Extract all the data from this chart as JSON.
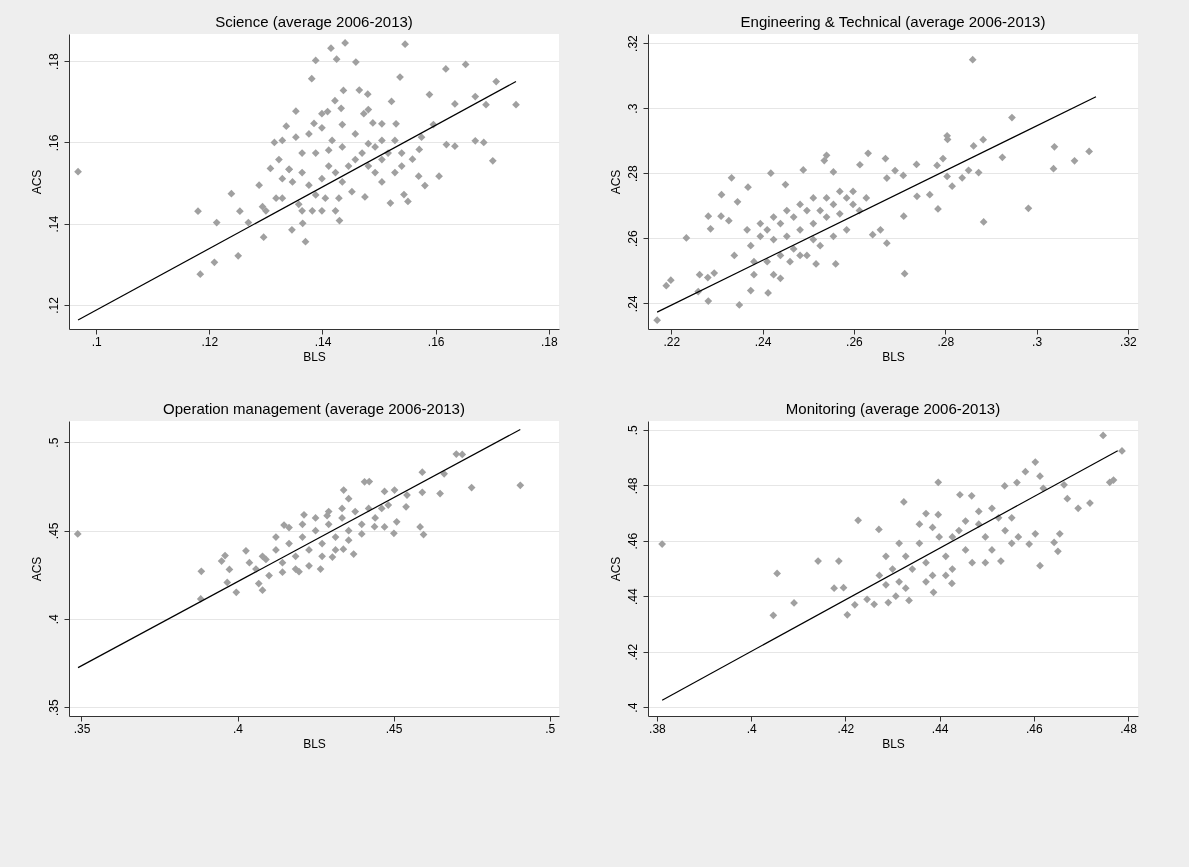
{
  "chart_data": [
    {
      "type": "scatter",
      "title": "Science (average 2006-2013)",
      "xlabel": "BLS",
      "ylabel": "ACS",
      "marker": "diamond",
      "grid": "y",
      "xlim": [
        0.0952,
        0.1818
      ],
      "ylim": [
        0.1141,
        0.1867
      ],
      "xticks": [
        {
          "value": 0.1,
          "label": ".1"
        },
        {
          "value": 0.12,
          "label": ".12"
        },
        {
          "value": 0.14,
          "label": ".14"
        },
        {
          "value": 0.16,
          "label": ".16"
        },
        {
          "value": 0.18,
          "label": ".18"
        }
      ],
      "yticks": [
        {
          "value": 0.12,
          "label": ".12"
        },
        {
          "value": 0.14,
          "label": ".14"
        },
        {
          "value": 0.16,
          "label": ".16"
        },
        {
          "value": 0.18,
          "label": ".18"
        }
      ],
      "series": [
        {
          "color": "#a0a0a0",
          "x": [
            0.0968,
            0.118,
            0.1184,
            0.1209,
            0.1213,
            0.1239,
            0.1251,
            0.1254,
            0.1269,
            0.1288,
            0.1296,
            0.1294,
            0.1308,
            0.1315,
            0.1336,
            0.1353,
            0.137,
            0.1381,
            0.1388,
            0.1415,
            0.144,
            0.1425,
            0.1459,
            0.1546,
            0.1537,
            0.1437,
            0.1465,
            0.148,
            0.1422,
            0.1433,
            0.1522,
            0.1618,
            0.1653,
            0.1707,
            0.1742,
            0.167,
            0.1689,
            0.1634,
            0.1589,
            0.1596,
            0.1575,
            0.167,
            0.1685,
            0.1701,
            0.1619,
            0.1634,
            0.1606,
            0.1581,
            0.1551,
            0.152,
            0.1544,
            0.1571,
            0.1559,
            0.157,
            0.153,
            0.1505,
            0.1489,
            0.1481,
            0.1473,
            0.1399,
            0.1409,
            0.1385,
            0.143,
            0.1346,
            0.1365,
            0.1475,
            0.1329,
            0.1347,
            0.1364,
            0.1376,
            0.1388,
            0.1399,
            0.1411,
            0.1423,
            0.1435,
            0.1446,
            0.1458,
            0.147,
            0.1481,
            0.1493,
            0.1505,
            0.1516,
            0.1364,
            0.1388,
            0.1411,
            0.1435,
            0.1341,
            0.1358,
            0.1382,
            0.1405,
            0.1429,
            0.1452,
            0.1329,
            0.1329,
            0.1353,
            0.1376,
            0.1399,
            0.1435,
            0.1458,
            0.1481,
            0.1505,
            0.1528,
            0.154,
            0.154,
            0.1528,
            0.1505,
            0.1341,
            0.13,
            0.1318,
            0.1493,
            0.1399,
            0.1423,
            0.1364,
            0.1323,
            0.1417
          ],
          "values": [
            0.1528,
            0.1431,
            0.1276,
            0.1305,
            0.1403,
            0.1474,
            0.1321,
            0.1431,
            0.1403,
            0.1495,
            0.1367,
            0.1442,
            0.1536,
            0.16,
            0.164,
            0.1677,
            0.1356,
            0.1757,
            0.1802,
            0.1832,
            0.1845,
            0.1805,
            0.1798,
            0.1842,
            0.1761,
            0.1728,
            0.1729,
            0.1719,
            0.1703,
            0.1684,
            0.1701,
            0.1781,
            0.1792,
            0.175,
            0.1693,
            0.1713,
            0.1693,
            0.1695,
            0.1718,
            0.1644,
            0.1613,
            0.1604,
            0.16,
            0.1555,
            0.1595,
            0.1591,
            0.1517,
            0.1494,
            0.1455,
            0.1451,
            0.1472,
            0.1583,
            0.1559,
            0.1517,
            0.1646,
            0.1646,
            0.1648,
            0.1681,
            0.1671,
            0.1671,
            0.1676,
            0.1647,
            0.1408,
            0.1385,
            0.1401,
            0.1466,
            0.1463,
            0.1503,
            0.1526,
            0.1495,
            0.1471,
            0.1511,
            0.1542,
            0.1526,
            0.1503,
            0.1542,
            0.1558,
            0.1574,
            0.1542,
            0.1526,
            0.1558,
            0.1574,
            0.1574,
            0.1574,
            0.1581,
            0.1589,
            0.1534,
            0.1448,
            0.1432,
            0.1463,
            0.1463,
            0.1479,
            0.1511,
            0.1605,
            0.1613,
            0.1621,
            0.1636,
            0.1644,
            0.1621,
            0.1597,
            0.1605,
            0.1605,
            0.1574,
            0.1542,
            0.1526,
            0.1503,
            0.1534,
            0.1432,
            0.1463,
            0.1589,
            0.1432,
            0.1432,
            0.1432,
            0.1558,
            0.1605
          ]
        },
        {
          "type": "line",
          "marker": "none",
          "color": "#000000",
          "x": [
            0.0968,
            0.1742
          ],
          "values": [
            0.1163,
            0.175
          ]
        }
      ]
    },
    {
      "type": "scatter",
      "title": "Engineering & Technical (average 2006-2013)",
      "xlabel": "BLS",
      "ylabel": "ACS",
      "marker": "diamond",
      "grid": "y",
      "xlim": [
        0.2149,
        0.3222
      ],
      "ylim": [
        0.2321,
        0.3228
      ],
      "xticks": [
        {
          "value": 0.22,
          "label": ".22"
        },
        {
          "value": 0.24,
          "label": ".24"
        },
        {
          "value": 0.26,
          "label": ".26"
        },
        {
          "value": 0.28,
          "label": ".28"
        },
        {
          "value": 0.3,
          "label": ".3"
        },
        {
          "value": 0.32,
          "label": ".32"
        }
      ],
      "yticks": [
        {
          "value": 0.24,
          "label": ".24"
        },
        {
          "value": 0.26,
          "label": ".26"
        },
        {
          "value": 0.28,
          "label": ".28"
        },
        {
          "value": 0.3,
          "label": ".3"
        },
        {
          "value": 0.32,
          "label": ".32"
        }
      ],
      "series": [
        {
          "color": "#a0a0a0",
          "x": [
            0.2169,
            0.2189,
            0.2199,
            0.2233,
            0.2262,
            0.228,
            0.2281,
            0.2259,
            0.2286,
            0.2281,
            0.231,
            0.2309,
            0.2332,
            0.2326,
            0.2345,
            0.2368,
            0.2349,
            0.2412,
            0.2418,
            0.245,
            0.2489,
            0.254,
            0.2535,
            0.2555,
            0.2631,
            0.2613,
            0.2669,
            0.269,
            0.2708,
            0.2737,
            0.2782,
            0.2795,
            0.2804,
            0.2805,
            0.2883,
            0.2862,
            0.286,
            0.2946,
            0.2925,
            0.3039,
            0.3037,
            0.3083,
            0.3115,
            0.2982,
            0.2884,
            0.2873,
            0.2851,
            0.2837,
            0.2815,
            0.2804,
            0.2784,
            0.2766,
            0.2738,
            0.2709,
            0.2711,
            0.2672,
            0.2658,
            0.2672,
            0.2641,
            0.256,
            0.2517,
            0.2439,
            0.2374,
            0.2294,
            0.2338,
            0.2374,
            0.2395,
            0.241,
            0.2424,
            0.2439,
            0.2453,
            0.2468,
            0.2482,
            0.2497,
            0.2511,
            0.2526,
            0.254,
            0.2555,
            0.2569,
            0.2584,
            0.2598,
            0.2612,
            0.2627,
            0.2381,
            0.241,
            0.2439,
            0.2468,
            0.2482,
            0.2395,
            0.2424,
            0.2453,
            0.2482,
            0.2511,
            0.254,
            0.2569,
            0.2598,
            0.2526,
            0.2555,
            0.2584,
            0.2381,
            0.2424,
            0.246,
            0.2366,
            0.2511,
            0.2497
          ],
          "values": [
            0.2348,
            0.2454,
            0.2471,
            0.2601,
            0.2488,
            0.2479,
            0.2407,
            0.2436,
            0.2629,
            0.2668,
            0.2734,
            0.2668,
            0.2786,
            0.2654,
            0.2712,
            0.2757,
            0.2395,
            0.2432,
            0.28,
            0.2765,
            0.281,
            0.2855,
            0.2839,
            0.2804,
            0.2861,
            0.2826,
            0.2845,
            0.2808,
            0.2793,
            0.2827,
            0.2824,
            0.2845,
            0.2915,
            0.2904,
            0.2903,
            0.2884,
            0.3149,
            0.2971,
            0.2849,
            0.2881,
            0.2814,
            0.2838,
            0.2867,
            0.2692,
            0.265,
            0.2802,
            0.2809,
            0.2786,
            0.276,
            0.279,
            0.269,
            0.2734,
            0.2729,
            0.2668,
            0.2491,
            0.2585,
            0.2626,
            0.2785,
            0.2611,
            0.2521,
            0.2521,
            0.2477,
            0.2439,
            0.2493,
            0.2547,
            0.2577,
            0.2606,
            0.2626,
            0.2596,
            0.2645,
            0.2606,
            0.2665,
            0.2626,
            0.2685,
            0.2645,
            0.2685,
            0.2665,
            0.2704,
            0.2675,
            0.2724,
            0.2704,
            0.2685,
            0.2724,
            0.2528,
            0.2528,
            0.2547,
            0.2567,
            0.2547,
            0.2645,
            0.2665,
            0.2685,
            0.2704,
            0.2724,
            0.2724,
            0.2744,
            0.2744,
            0.2577,
            0.2606,
            0.2626,
            0.2488,
            0.2488,
            0.2528,
            0.2626,
            0.2596,
            0.2547
          ]
        },
        {
          "type": "line",
          "marker": "none",
          "color": "#000000",
          "x": [
            0.2169,
            0.313
          ],
          "values": [
            0.2373,
            0.3035
          ]
        }
      ]
    },
    {
      "type": "scatter",
      "title": "Operation management (average 2006-2013)",
      "xlabel": "BLS",
      "ylabel": "ACS",
      "marker": "diamond",
      "grid": "y",
      "xlim": [
        0.346,
        0.503
      ],
      "ylim": [
        0.345,
        0.512
      ],
      "xticks": [
        {
          "value": 0.35,
          "label": ".35"
        },
        {
          "value": 0.4,
          "label": ".4"
        },
        {
          "value": 0.45,
          "label": ".45"
        },
        {
          "value": 0.5,
          "label": ".5"
        }
      ],
      "yticks": [
        {
          "value": 0.35,
          "label": ".35"
        },
        {
          "value": 0.4,
          "label": ".4"
        },
        {
          "value": 0.45,
          "label": ".45"
        },
        {
          "value": 0.5,
          "label": ".5"
        }
      ],
      "series": [
        {
          "color": "#a0a0a0",
          "x": [
            0.3488,
            0.3884,
            0.3882,
            0.3949,
            0.396,
            0.3974,
            0.3967,
            0.3996,
            0.4027,
            0.4068,
            0.408,
            0.4149,
            0.4213,
            0.4287,
            0.434,
            0.4356,
            0.4407,
            0.4422,
            0.4471,
            0.4503,
            0.4543,
            0.454,
            0.451,
            0.4501,
            0.4471,
            0.4439,
            0.4585,
            0.4596,
            0.4592,
            0.4592,
            0.4649,
            0.4662,
            0.4701,
            0.472,
            0.475,
            0.4906,
            0.4372,
            0.4339,
            0.4266,
            0.4197,
            0.4304,
            0.4059,
            0.4091,
            0.4123,
            0.4144,
            0.4165,
            0.4186,
            0.4208,
            0.4229,
            0.425,
            0.4271,
            0.4292,
            0.4314,
            0.4335,
            0.4356,
            0.4377,
            0.4398,
            0.442,
            0.4101,
            0.4144,
            0.4186,
            0.4229,
            0.4271,
            0.4314,
            0.4356,
            0.4398,
            0.4123,
            0.4165,
            0.4208,
            0.425,
            0.4292,
            0.4335,
            0.408,
            0.4038,
            0.4441,
            0.4462,
            0.4483
          ],
          "values": [
            0.4481,
            0.4269,
            0.4113,
            0.4327,
            0.4358,
            0.428,
            0.4206,
            0.415,
            0.4385,
            0.42,
            0.4162,
            0.4531,
            0.4589,
            0.4584,
            0.4729,
            0.468,
            0.4776,
            0.4777,
            0.4721,
            0.4729,
            0.4701,
            0.4634,
            0.4549,
            0.4484,
            0.452,
            0.4522,
            0.452,
            0.4477,
            0.483,
            0.4716,
            0.4709,
            0.4821,
            0.4933,
            0.4931,
            0.4743,
            0.4756,
            0.4367,
            0.4394,
            0.4282,
            0.4267,
            0.435,
            0.4282,
            0.4336,
            0.439,
            0.4318,
            0.4426,
            0.4354,
            0.4463,
            0.439,
            0.4499,
            0.4426,
            0.4535,
            0.4463,
            0.4571,
            0.4499,
            0.4607,
            0.4535,
            0.4625,
            0.4245,
            0.4264,
            0.4282,
            0.43,
            0.4354,
            0.439,
            0.4445,
            0.4481,
            0.4463,
            0.4517,
            0.4535,
            0.4571,
            0.4607,
            0.4625,
            0.4354,
            0.4318,
            0.4571,
            0.4625,
            0.4644
          ]
        },
        {
          "type": "line",
          "marker": "none",
          "color": "#000000",
          "x": [
            0.3489,
            0.4906
          ],
          "values": [
            0.3724,
            0.5072
          ]
        }
      ]
    },
    {
      "type": "scatter",
      "title": "Monitoring (average 2006-2013)",
      "xlabel": "BLS",
      "ylabel": "ACS",
      "marker": "diamond",
      "grid": "y",
      "xlim": [
        0.3781,
        0.4821
      ],
      "ylim": [
        0.3968,
        0.5032
      ],
      "xticks": [
        {
          "value": 0.38,
          "label": ".38"
        },
        {
          "value": 0.4,
          "label": ".4"
        },
        {
          "value": 0.42,
          "label": ".42"
        },
        {
          "value": 0.44,
          "label": ".44"
        },
        {
          "value": 0.46,
          "label": ".46"
        },
        {
          "value": 0.48,
          "label": ".48"
        }
      ],
      "yticks": [
        {
          "value": 0.4,
          "label": ".4"
        },
        {
          "value": 0.42,
          "label": ".42"
        },
        {
          "value": 0.44,
          "label": ".44"
        },
        {
          "value": 0.46,
          "label": ".46"
        },
        {
          "value": 0.48,
          "label": ".48"
        },
        {
          "value": 0.5,
          "label": ".5"
        }
      ],
      "series": [
        {
          "color": "#a0a0a0",
          "x": [
            0.3811,
            0.4047,
            0.4055,
            0.4091,
            0.4142,
            0.4176,
            0.4186,
            0.4196,
            0.4204,
            0.422,
            0.4227,
            0.4246,
            0.4261,
            0.4271,
            0.4291,
            0.4324,
            0.4335,
            0.4371,
            0.4397,
            0.4397,
            0.4443,
            0.4468,
            0.4538,
            0.4564,
            0.4582,
            0.4603,
            0.4613,
            0.462,
            0.4664,
            0.4671,
            0.4719,
            0.4694,
            0.4747,
            0.4787,
            0.4761,
            0.4769,
            0.4613,
            0.4651,
            0.4655,
            0.4643,
            0.459,
            0.4603,
            0.453,
            0.4426,
            0.4387,
            0.4307,
            0.4286,
            0.43,
            0.4314,
            0.4328,
            0.4342,
            0.4357,
            0.4371,
            0.4385,
            0.4399,
            0.4413,
            0.4427,
            0.4441,
            0.4455,
            0.4469,
            0.4483,
            0.4497,
            0.4511,
            0.4525,
            0.4539,
            0.4553,
            0.4567,
            0.4272,
            0.4286,
            0.4328,
            0.4371,
            0.4413,
            0.4455,
            0.4483,
            0.4511,
            0.4385,
            0.4357,
            0.4427,
            0.4497,
            0.4553,
            0.4314
          ],
          "values": [
            0.4588,
            0.4331,
            0.4482,
            0.4376,
            0.4527,
            0.4429,
            0.4527,
            0.4431,
            0.4333,
            0.4369,
            0.4674,
            0.4389,
            0.4371,
            0.4641,
            0.4377,
            0.474,
            0.4385,
            0.4698,
            0.4811,
            0.4694,
            0.4766,
            0.4762,
            0.4798,
            0.481,
            0.4849,
            0.4884,
            0.4833,
            0.4789,
            0.4802,
            0.4752,
            0.4736,
            0.4717,
            0.498,
            0.4924,
            0.4811,
            0.4819,
            0.451,
            0.4562,
            0.4625,
            0.4594,
            0.4588,
            0.4625,
            0.4527,
            0.4446,
            0.4414,
            0.44,
            0.4544,
            0.4498,
            0.4452,
            0.4544,
            0.4498,
            0.4591,
            0.4521,
            0.4475,
            0.4614,
            0.4544,
            0.4498,
            0.4637,
            0.4567,
            0.4521,
            0.466,
            0.4614,
            0.4567,
            0.4683,
            0.4637,
            0.4683,
            0.4614,
            0.4475,
            0.4441,
            0.4429,
            0.4452,
            0.4475,
            0.4671,
            0.4706,
            0.4717,
            0.4648,
            0.466,
            0.4614,
            0.4521,
            0.4591,
            0.4591
          ]
        },
        {
          "type": "line",
          "marker": "none",
          "color": "#000000",
          "x": [
            0.3811,
            0.4778
          ],
          "values": [
            0.4025,
            0.4925
          ]
        }
      ]
    }
  ]
}
